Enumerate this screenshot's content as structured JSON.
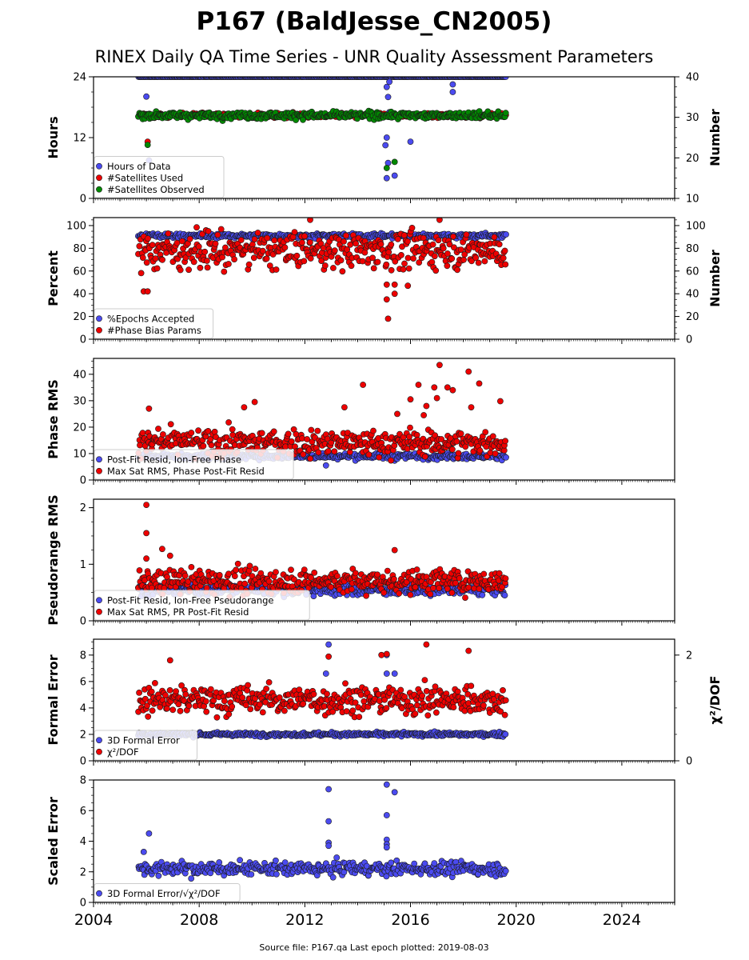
{
  "title": "P167 (BaldJesse_CN2005)",
  "subtitle": "RINEX Daily QA Time Series - UNR Quality Assessment Parameters",
  "footer": "Source file: P167.qa Last epoch plotted: 2019-08-03",
  "colors": {
    "blue": "#4b4bf0",
    "red": "#ee0000",
    "green": "#008800",
    "edge": "#1a1a1a"
  },
  "chart_data": [
    {
      "type": "scatter",
      "id": "hours",
      "xlim": [
        2004,
        2026
      ],
      "xticks": [
        "2004",
        "2008",
        "2012",
        "2016",
        "2020",
        "2024"
      ],
      "ylabel": "Hours",
      "ylim": [
        0,
        24
      ],
      "yticks": [
        "0",
        "12",
        "24"
      ],
      "y2label": "Number",
      "y2lim": [
        10,
        40
      ],
      "y2ticks": [
        "10",
        "20",
        "30",
        "40"
      ],
      "legend": "lower-left",
      "series": [
        {
          "name": "Hours of Data",
          "color": "blue",
          "axis": "left",
          "base": 24.0,
          "noise": 0.0,
          "start": 2005.7,
          "end": 2019.6,
          "outliers": [
            [
              2006.0,
              20.1
            ],
            [
              2006.1,
              7.5
            ],
            [
              2015.1,
              22
            ],
            [
              2015.15,
              20
            ],
            [
              2015.2,
              17
            ],
            [
              2015.1,
              12
            ],
            [
              2015.15,
              7
            ],
            [
              2015.1,
              4
            ],
            [
              2015.4,
              4.5
            ],
            [
              2015.05,
              10.5
            ],
            [
              2016.0,
              11.2
            ],
            [
              2017.6,
              21
            ],
            [
              2017.6,
              22.5
            ],
            [
              2015.2,
              23
            ],
            [
              2015.3,
              16
            ]
          ]
        },
        {
          "name": "#Satellites Used",
          "color": "red",
          "axis": "right",
          "base": 30.5,
          "noise": 0.4,
          "start": 2005.7,
          "end": 2019.6,
          "outliers": [
            [
              2006.05,
              24
            ],
            [
              2009.1,
              30.4
            ]
          ]
        },
        {
          "name": "#Satellites Observed",
          "color": "green",
          "axis": "right",
          "base": 30.5,
          "noise": 0.6,
          "start": 2005.7,
          "end": 2019.6,
          "outliers": [
            [
              2006.05,
              23.2
            ],
            [
              2015.1,
              17.5
            ],
            [
              2015.4,
              19
            ]
          ]
        }
      ]
    },
    {
      "type": "scatter",
      "id": "percent",
      "xlim": [
        2004,
        2026
      ],
      "xticks": [
        "2004",
        "2008",
        "2012",
        "2016",
        "2020",
        "2024"
      ],
      "ylabel": "Percent",
      "ylim": [
        0,
        107
      ],
      "yticks": [
        "0",
        "20",
        "40",
        "60",
        "80",
        "100"
      ],
      "y2label": "Number",
      "y2lim": [
        0,
        107
      ],
      "y2ticks": [
        "0",
        "20",
        "40",
        "60",
        "80",
        "100"
      ],
      "legend": "lower-left",
      "series": [
        {
          "name": "%Epochs Accepted",
          "color": "blue",
          "axis": "left",
          "base": 91,
          "noise": 1.5,
          "start": 2005.7,
          "end": 2019.6,
          "outliers": []
        },
        {
          "name": "#Phase Bias Params",
          "color": "red",
          "axis": "right",
          "base": 78,
          "noise": 11,
          "start": 2005.7,
          "end": 2019.6,
          "outliers": [
            [
              2005.9,
              42
            ],
            [
              2006.05,
              42
            ],
            [
              2015.1,
              48
            ],
            [
              2015.1,
              35
            ],
            [
              2015.15,
              18
            ],
            [
              2015.4,
              48
            ],
            [
              2015.4,
              40
            ],
            [
              2015.9,
              47
            ],
            [
              2017.1,
              105
            ],
            [
              2012.2,
              105
            ]
          ]
        }
      ]
    },
    {
      "type": "scatter",
      "id": "phase",
      "xlim": [
        2004,
        2026
      ],
      "xticks": [
        "2004",
        "2008",
        "2012",
        "2016",
        "2020",
        "2024"
      ],
      "ylabel": "Phase RMS",
      "ylim": [
        0,
        46
      ],
      "yticks": [
        "0",
        "10",
        "20",
        "30",
        "40"
      ],
      "legend": "lower-left",
      "series": [
        {
          "name": "Post-Fit Resid, Ion-Free Phase",
          "color": "blue",
          "axis": "left",
          "base": 9,
          "noise": 0.8,
          "start": 2005.7,
          "end": 2019.6,
          "outliers": [
            [
              2012.8,
              5.5
            ]
          ]
        },
        {
          "name": "Max Sat RMS, Phase Post-Fit Resid",
          "color": "red",
          "axis": "left",
          "base": 14,
          "noise": 3.5,
          "start": 2005.7,
          "end": 2019.6,
          "outliers": [
            [
              2017.1,
              43.5
            ],
            [
              2018.2,
              41
            ],
            [
              2014.2,
              36
            ],
            [
              2016.3,
              36
            ],
            [
              2017.4,
              35
            ],
            [
              2016.9,
              35
            ],
            [
              2017.6,
              34
            ],
            [
              2018.6,
              36.5
            ],
            [
              2019.4,
              29.8
            ],
            [
              2010.1,
              29.5
            ],
            [
              2006.1,
              27
            ],
            [
              2016.0,
              30.5
            ],
            [
              2017.0,
              31
            ],
            [
              2016.6,
              28
            ],
            [
              2015.5,
              25
            ],
            [
              2016.5,
              24.5
            ],
            [
              2018.3,
              27.5
            ],
            [
              2009.7,
              27.5
            ],
            [
              2013.5,
              27.5
            ]
          ]
        }
      ]
    },
    {
      "type": "scatter",
      "id": "pseudorange",
      "xlim": [
        2004,
        2026
      ],
      "xticks": [
        "2004",
        "2008",
        "2012",
        "2016",
        "2020",
        "2024"
      ],
      "ylabel": "Pseudorange RMS",
      "ylim": [
        0,
        2.15
      ],
      "yticks": [
        "0",
        "1",
        "2"
      ],
      "legend": "lower-left",
      "series": [
        {
          "name": "Post-Fit Resid, Ion-Free Pseudorange",
          "color": "blue",
          "axis": "left",
          "base": 0.55,
          "noise": 0.07,
          "start": 2005.7,
          "end": 2019.6,
          "outliers": []
        },
        {
          "name": "Max Sat RMS, PR Post-Fit Resid",
          "color": "red",
          "axis": "left",
          "base": 0.7,
          "noise": 0.15,
          "start": 2005.7,
          "end": 2019.6,
          "outliers": [
            [
              2006.0,
              2.05
            ],
            [
              2006.0,
              1.55
            ],
            [
              2006.6,
              1.27
            ],
            [
              2006.9,
              1.15
            ],
            [
              2006.0,
              1.1
            ],
            [
              2015.4,
              1.25
            ]
          ]
        }
      ]
    },
    {
      "type": "scatter",
      "id": "formal",
      "xlim": [
        2004,
        2026
      ],
      "xticks": [
        "2004",
        "2008",
        "2012",
        "2016",
        "2020",
        "2024"
      ],
      "ylabel": "Formal Error",
      "ylim": [
        0,
        9.2
      ],
      "yticks": [
        "0",
        "2",
        "4",
        "6",
        "8"
      ],
      "y2label": "χ²/DOF",
      "y2lim": [
        0,
        2.3
      ],
      "y2ticks": [
        "0",
        "2"
      ],
      "legend": "lower-left",
      "series": [
        {
          "name": "3D Formal Error",
          "color": "blue",
          "axis": "left",
          "base": 2.0,
          "noise": 0.1,
          "start": 2005.7,
          "end": 2019.6,
          "outliers": [
            [
              2012.9,
              8.8
            ],
            [
              2012.8,
              6.6
            ],
            [
              2015.1,
              8.0
            ],
            [
              2015.1,
              6.6
            ],
            [
              2015.4,
              6.6
            ]
          ]
        },
        {
          "name": "χ²/DOF",
          "color": "red",
          "axis": "right",
          "base": 1.15,
          "noise": 0.2,
          "start": 2005.7,
          "end": 2019.6,
          "outliers": [
            [
              2016.6,
              2.2
            ],
            [
              2018.2,
              2.08
            ],
            [
              2014.9,
              2.0
            ],
            [
              2015.1,
              2.02
            ],
            [
              2012.9,
              1.97
            ],
            [
              2006.9,
              1.9
            ]
          ]
        }
      ]
    },
    {
      "type": "scatter",
      "id": "scaled",
      "xlim": [
        2004,
        2026
      ],
      "xticks": [
        "2004",
        "2008",
        "2012",
        "2016",
        "2020",
        "2024"
      ],
      "ylabel": "Scaled Error",
      "ylim": [
        0,
        8
      ],
      "yticks": [
        "0",
        "2",
        "4",
        "6",
        "8"
      ],
      "legend": "lower-left",
      "series": [
        {
          "name": "3D Formal Error/√χ²/DOF",
          "color": "blue",
          "axis": "left",
          "base": 2.2,
          "noise": 0.3,
          "start": 2005.7,
          "end": 2019.6,
          "outliers": [
            [
              2006.1,
              4.5
            ],
            [
              2005.9,
              3.3
            ],
            [
              2012.9,
              7.4
            ],
            [
              2012.9,
              5.3
            ],
            [
              2012.9,
              3.9
            ],
            [
              2012.9,
              3.7
            ],
            [
              2015.1,
              7.7
            ],
            [
              2015.4,
              7.2
            ],
            [
              2015.1,
              5.7
            ],
            [
              2015.1,
              4.1
            ],
            [
              2015.1,
              3.8
            ],
            [
              2015.1,
              3.6
            ]
          ]
        }
      ]
    }
  ]
}
